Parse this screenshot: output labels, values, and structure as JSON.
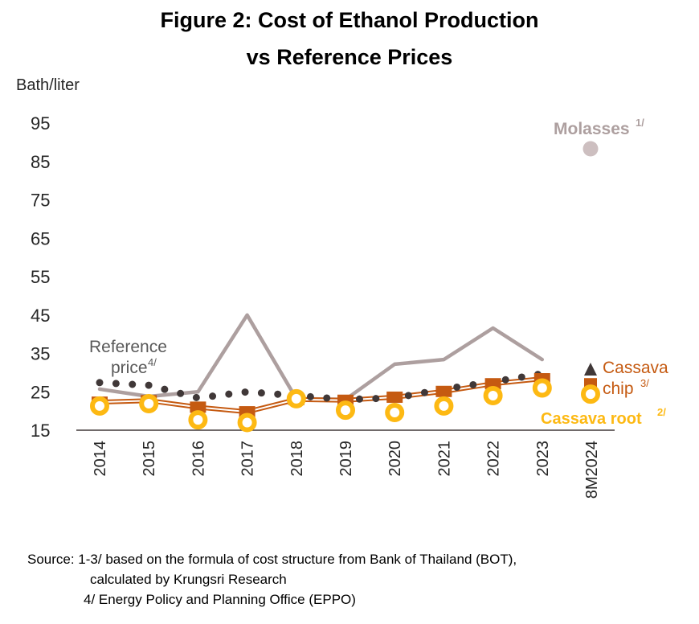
{
  "title_line1": "Figure 2: Cost of Ethanol Production",
  "title_line2": "vs Reference Prices",
  "chart_data": {
    "type": "line",
    "title": "Figure 2: Cost of Ethanol Production vs Reference Prices",
    "ylabel": "Bath/liter",
    "xlabel": "",
    "ylim": [
      15,
      95
    ],
    "yticks": [
      15,
      25,
      35,
      45,
      55,
      65,
      75,
      85,
      95
    ],
    "categories": [
      "2014",
      "2015",
      "2016",
      "2017",
      "2018",
      "2019",
      "2020",
      "2021",
      "2022",
      "2023",
      "8M2024"
    ],
    "grid": false,
    "series": [
      {
        "name": "Molasses",
        "label": "Molasses",
        "footnote": "1/",
        "color": "#AD9F9F",
        "values": [
          25.7,
          23.8,
          25.0,
          45.0,
          23.2,
          23.0,
          32.2,
          33.4,
          41.6,
          33.4,
          null
        ],
        "point_8M2024": 88.3
      },
      {
        "name": "Reference price",
        "label": "Reference\nprice",
        "footnote": "4/",
        "color": "#403838",
        "values": [
          27.4,
          26.7,
          23.4,
          25.0,
          24.0,
          23.0,
          23.4,
          25.7,
          27.6,
          29.7,
          null
        ],
        "point_8M2024": 30.7
      },
      {
        "name": "Cassava chip",
        "label": "Cassava chip",
        "footnote": "3/",
        "color": "#C55A11",
        "values": [
          22.3,
          22.7,
          21.0,
          19.8,
          23.0,
          22.8,
          23.6,
          25.1,
          27.1,
          28.4,
          null
        ],
        "point_8M2024": 27.1
      },
      {
        "name": "Cassava root",
        "label": "Cassava root",
        "footnote": "2/",
        "color": "#FDB913",
        "values": [
          21.3,
          21.9,
          17.7,
          17.0,
          23.2,
          20.2,
          19.6,
          21.3,
          24.0,
          26.0,
          null
        ],
        "point_8M2024": 24.4
      }
    ],
    "annotations": {
      "molasses": "Molasses",
      "molasses_note": "1/",
      "reference_line1": "Reference",
      "reference_line2": "price",
      "reference_note": "4/",
      "chip_line1": "Cassava",
      "chip_line2": "chip",
      "chip_note": "3/",
      "root": "Cassava root",
      "root_note": "2/"
    }
  },
  "source": {
    "line1": "Source: 1-3/ based on the formula of cost structure from Bank of Thailand (BOT),",
    "line2": "calculated by Krungsri Research",
    "line3": "4/ Energy Policy and Planning Office (EPPO)"
  }
}
